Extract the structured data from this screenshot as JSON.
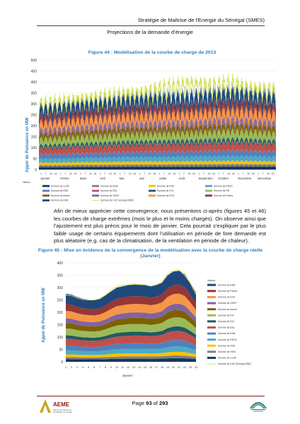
{
  "header": {
    "title": "Stratégie de Maîtrise de l’Energie du Sénégal (SMES)",
    "subtitle": "Projections de la demande d’énergie"
  },
  "figure44": {
    "caption": "Figure 44 : Modélisation de la courbe de charge de 2013",
    "ylabel": "Appel de Puissance en MW",
    "yticks": [
      "0",
      "50",
      "100",
      "150",
      "200",
      "250",
      "300",
      "350",
      "400",
      "450",
      "500"
    ],
    "months": [
      "Janvier",
      "Février",
      "Mars",
      "Avril",
      "Mai",
      "Juin",
      "Juillet",
      "Août",
      "Septembre",
      "Octobre",
      "Novembre",
      "Décembre"
    ],
    "day_ticks": [
      "1",
      "7",
      "13",
      "19"
    ],
    "legend_label": "Valeurs",
    "legend": [
      {
        "name": "Somme de CLIM",
        "color": "#17375e"
      },
      {
        "name": "Somme de EEM",
        "color": "#7f7f7f"
      },
      {
        "name": "Somme de FRD",
        "color": "#ffc000"
      },
      {
        "name": "Somme de PROC",
        "color": "#4bacc6"
      },
      {
        "name": "Somme de EEB",
        "color": "#4f81bd"
      },
      {
        "name": "Somme de EEL",
        "color": "#c0504d"
      },
      {
        "name": "Somme de ECL",
        "color": "#215967"
      },
      {
        "name": "Somme de FM",
        "color": "#9bbb59"
      },
      {
        "name": "Somme de Autres",
        "color": "#7f6000"
      },
      {
        "name": "Somme de VENT",
        "color": "#8064a2"
      },
      {
        "name": "Somme de ECS",
        "color": "#f79646"
      },
      {
        "name": "Somme de Pertes",
        "color": "#953735"
      },
      {
        "name": "Somme de END",
        "color": "#1f497d"
      },
      {
        "name": "Somme de CdC Sénégal (MW)",
        "color": "#d4e157"
      }
    ]
  },
  "paragraph": "Afin de mieux apprécier cette convergence, nous présentons ci-après (figures 45 et 46) les courbes de charge extrêmes (mois le plus et le moins chargés). On observe ainsi que l’ajustement est plus précis pour le mois de janvier. Cela pourrait s’expliquer par le plus faible usage de certains équipements dont l’utilisation en période de fore demande est plus aléatoire (e.g. cas de la climatisation, de la ventilation en période de chaleur).",
  "figure45": {
    "caption_line1": "Figure 45 : Mise en évidence de la convergence de la modélisation avec la courbe de charge réelle",
    "caption_line2": "(Janvier)",
    "ylabel": "Appel de Puissance en MW",
    "xlabel": "Janvier",
    "yticks": [
      "0",
      "50",
      "100",
      "150",
      "200",
      "250",
      "300",
      "350",
      "400"
    ],
    "xticks": [
      "1",
      "2",
      "3",
      "4",
      "5",
      "6",
      "7",
      "8",
      "9",
      "10",
      "11",
      "12",
      "13",
      "14",
      "15",
      "16",
      "17",
      "18",
      "19",
      "20",
      "21",
      "22",
      "23",
      "24"
    ],
    "legend_label": "Valeurs",
    "legend": [
      {
        "name": "Somme de END",
        "color": "#1f497d"
      },
      {
        "name": "Somme de Pertes",
        "color": "#953735"
      },
      {
        "name": "Somme de ECS",
        "color": "#f79646"
      },
      {
        "name": "Somme de VENT",
        "color": "#8064a2"
      },
      {
        "name": "Somme de Autres",
        "color": "#7f6000"
      },
      {
        "name": "Somme de FM",
        "color": "#9bbb59"
      },
      {
        "name": "Somme de ECL",
        "color": "#215967"
      },
      {
        "name": "Somme de EEL",
        "color": "#c0504d"
      },
      {
        "name": "Somme de EEB",
        "color": "#4f81bd"
      },
      {
        "name": "Somme de PROC",
        "color": "#4bacc6"
      },
      {
        "name": "Somme de FRD",
        "color": "#ffc000"
      },
      {
        "name": "Somme de EEM",
        "color": "#7f7f7f"
      },
      {
        "name": "Somme de CLIM",
        "color": "#17375e"
      },
      {
        "name": "Somme de CdC Sénégal (MW)",
        "color": "#d4e157"
      }
    ]
  },
  "chart_data": [
    {
      "type": "area",
      "title": "Figure 44 : Modélisation de la courbe de charge de 2013",
      "ylabel": "Appel de Puissance en MW",
      "ylim": [
        0,
        500
      ],
      "categories": [
        "Janvier",
        "Février",
        "Mars",
        "Avril",
        "Mai",
        "Juin",
        "Juillet",
        "Août",
        "Septembre",
        "Octobre",
        "Novembre",
        "Décembre"
      ],
      "stack_order": [
        "CLIM",
        "EEM",
        "FRD",
        "PROC",
        "EEB",
        "EEL",
        "ECL",
        "FM",
        "Autres",
        "VENT",
        "ECS",
        "Pertes",
        "END"
      ],
      "stacked_peak_by_month": [
        320,
        330,
        345,
        355,
        370,
        375,
        380,
        385,
        395,
        405,
        395,
        380
      ],
      "reference_series": {
        "name": "Somme de CdC Sénégal (MW)",
        "peak_by_month": [
          335,
          345,
          360,
          370,
          385,
          395,
          420,
          440,
          425,
          440,
          410,
          400
        ]
      }
    },
    {
      "type": "area",
      "title": "Figure 45 : Mise en évidence de la convergence de la modélisation avec la courbe de charge réelle (Janvier)",
      "xlabel": "Janvier",
      "ylabel": "Appel de Puissance en MW",
      "ylim": [
        0,
        400
      ],
      "x": [
        1,
        2,
        3,
        4,
        5,
        6,
        7,
        8,
        9,
        10,
        11,
        12,
        13,
        14,
        15,
        16,
        17,
        18,
        19,
        20,
        21,
        22,
        23,
        24
      ],
      "stacked_total": [
        275,
        272,
        262,
        255,
        252,
        250,
        255,
        268,
        285,
        300,
        305,
        310,
        312,
        312,
        310,
        305,
        310,
        320,
        350,
        365,
        368,
        355,
        320,
        280
      ],
      "reference_series": {
        "name": "Somme de CdC Sénégal (MW)",
        "values": [
          270,
          268,
          258,
          252,
          250,
          250,
          255,
          270,
          290,
          305,
          310,
          312,
          315,
          312,
          312,
          306,
          312,
          325,
          355,
          368,
          372,
          350,
          318,
          272
        ]
      }
    }
  ]
}
